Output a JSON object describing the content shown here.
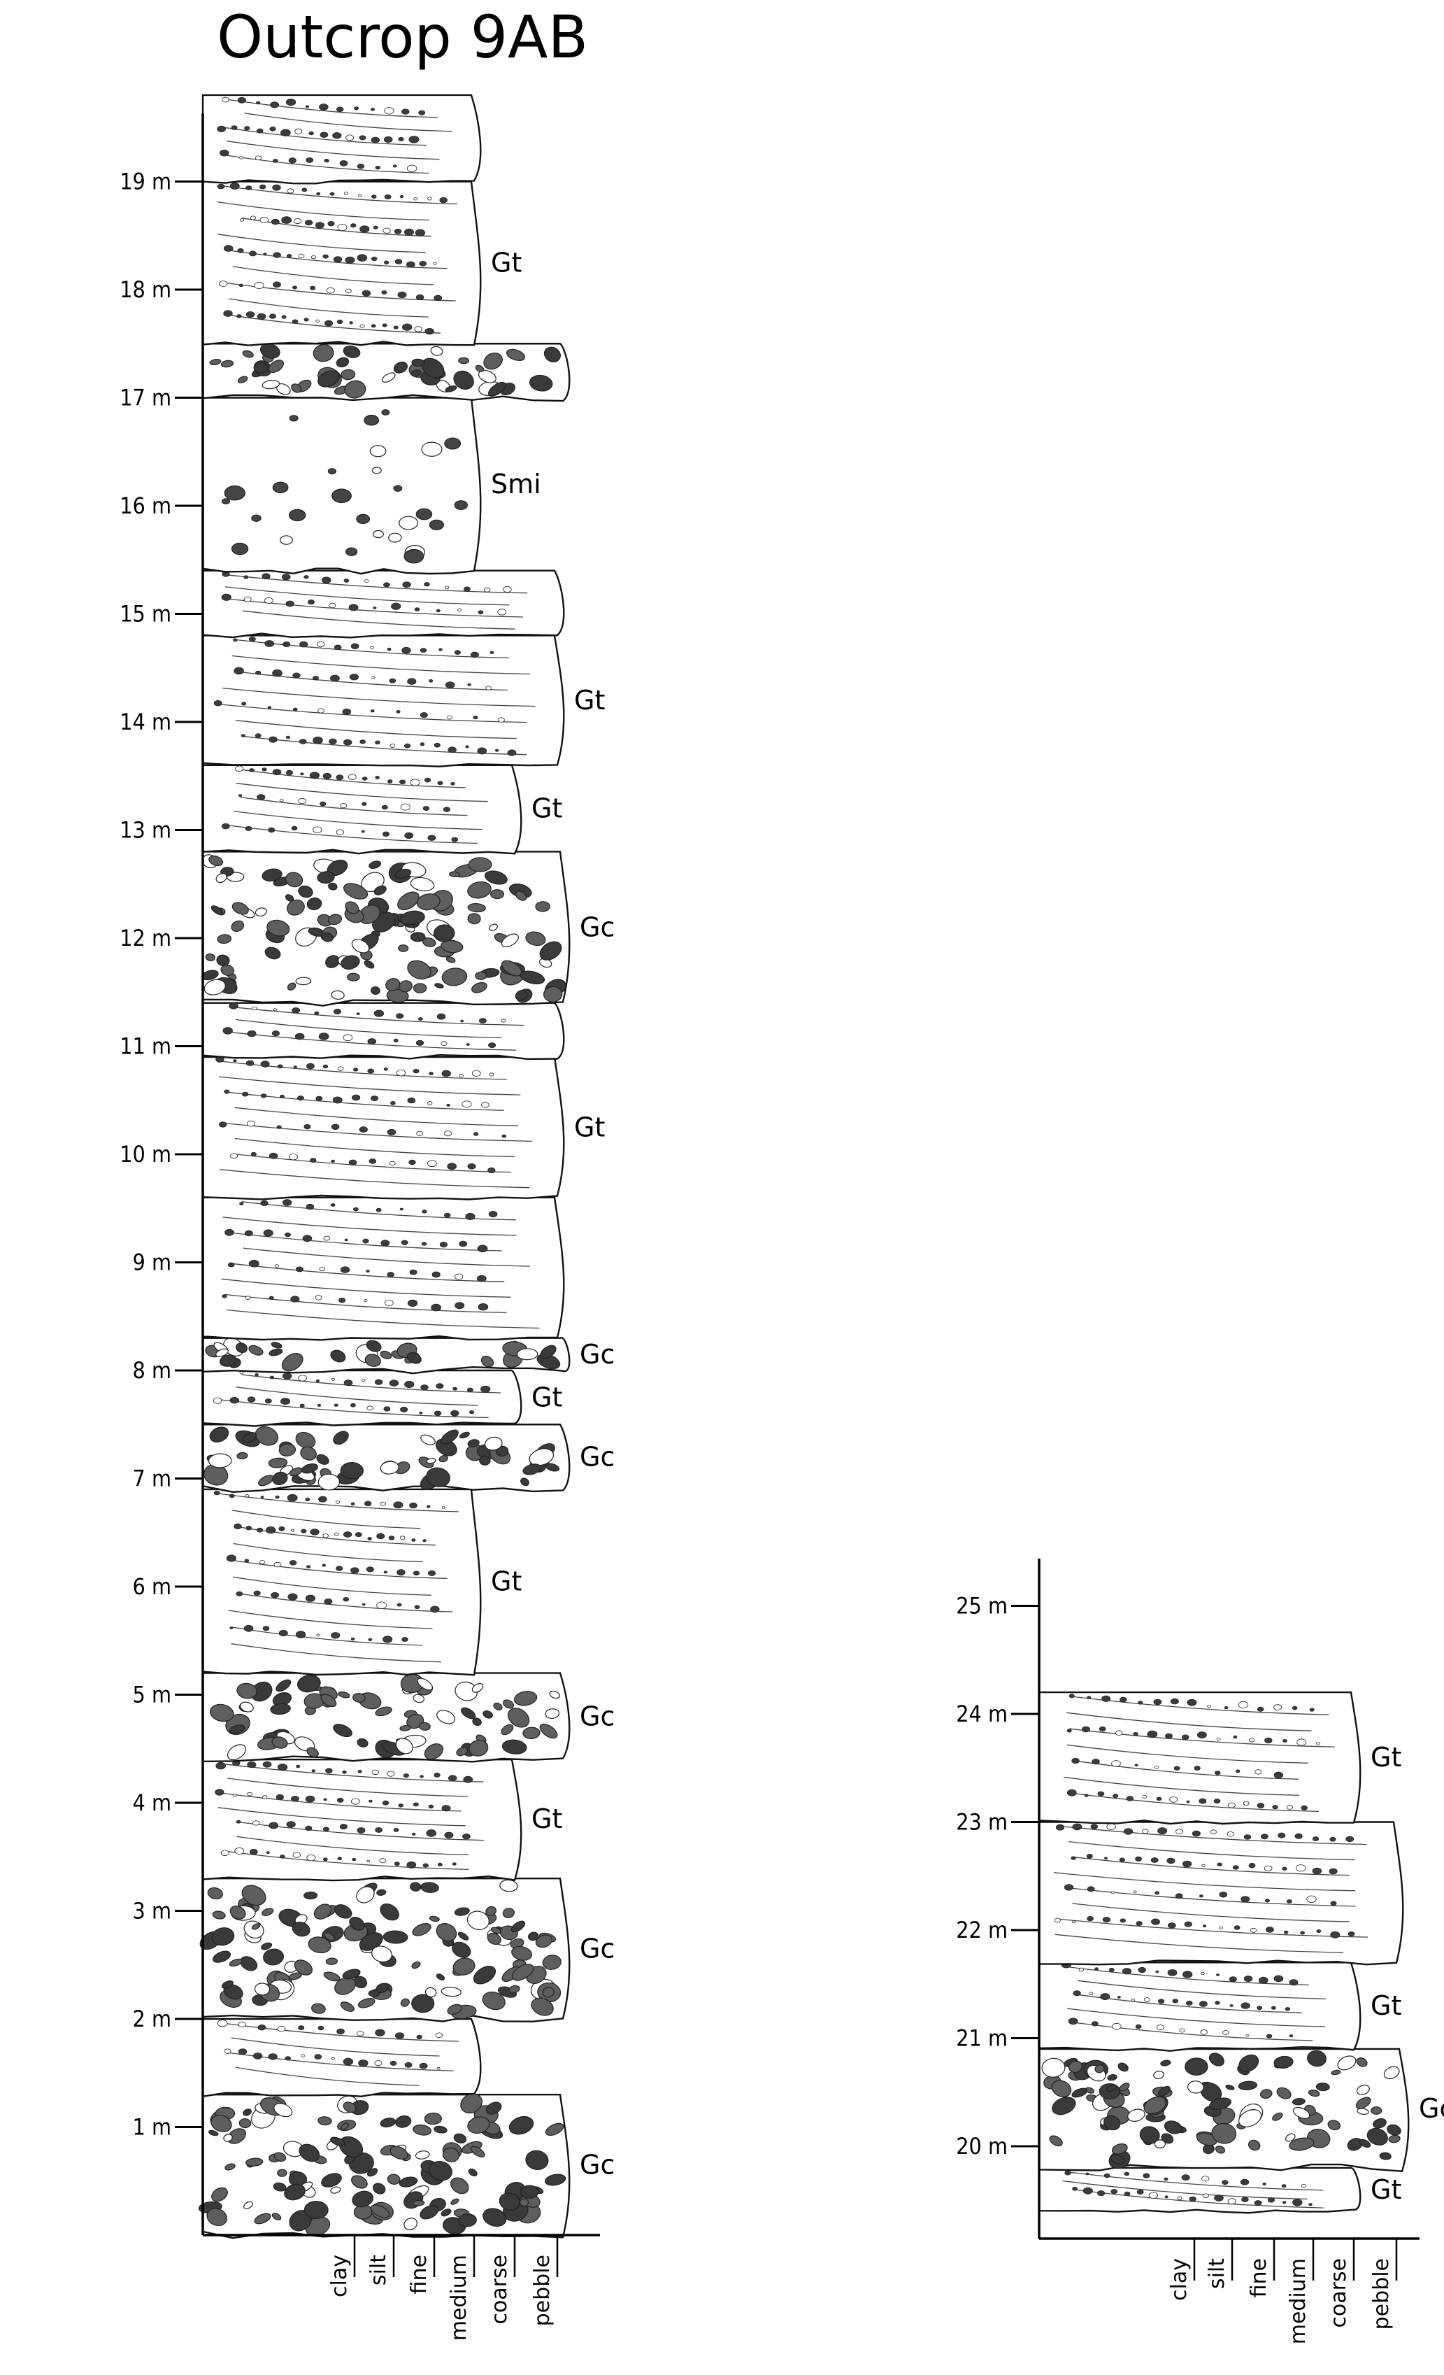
{
  "title": "Outcrop 9AB",
  "columns": [
    {
      "ticks": [
        "1 m",
        "2 m",
        "3 m",
        "4 m",
        "5 m",
        "6 m",
        "7 m",
        "8 m",
        "9 m",
        "10 m",
        "11 m",
        "12 m",
        "13 m",
        "14 m",
        "15 m",
        "16 m",
        "17 m",
        "18 m",
        "19 m"
      ],
      "grain_sizes": [
        "clay",
        "silt",
        "fine",
        "medium",
        "coarse",
        "pebble"
      ],
      "beds": [
        {
          "facies": "Gc",
          "bottom": 0,
          "top": 1.3,
          "grain": "pebble",
          "label": "Gc"
        },
        {
          "facies": "Gt",
          "bottom": 1.3,
          "top": 2.0,
          "grain": "medium",
          "label": ""
        },
        {
          "facies": "Gc",
          "bottom": 2.0,
          "top": 3.3,
          "grain": "pebble",
          "label": "Gc"
        },
        {
          "facies": "Gt",
          "bottom": 3.3,
          "top": 4.4,
          "grain": "coarse",
          "label": "Gt"
        },
        {
          "facies": "Gc",
          "bottom": 4.4,
          "top": 5.2,
          "grain": "pebble",
          "label": "Gc"
        },
        {
          "facies": "Gt",
          "bottom": 5.2,
          "top": 6.9,
          "grain": "medium",
          "label": "Gt"
        },
        {
          "facies": "Gc",
          "bottom": 6.9,
          "top": 7.5,
          "grain": "pebble",
          "label": "Gc"
        },
        {
          "facies": "Gt",
          "bottom": 7.5,
          "top": 8.0,
          "grain": "coarse",
          "label": "Gt"
        },
        {
          "facies": "Gc",
          "bottom": 8.0,
          "top": 8.3,
          "grain": "pebble",
          "label": "Gc"
        },
        {
          "facies": "Gt",
          "bottom": 8.3,
          "top": 9.6,
          "grain": "pebble",
          "label": ""
        },
        {
          "facies": "Gt",
          "bottom": 9.6,
          "top": 10.9,
          "grain": "pebble",
          "label": "Gt"
        },
        {
          "facies": "Gt",
          "bottom": 10.9,
          "top": 11.4,
          "grain": "pebble",
          "label": ""
        },
        {
          "facies": "Gc",
          "bottom": 11.4,
          "top": 12.8,
          "grain": "pebble",
          "label": "Gc"
        },
        {
          "facies": "Gt",
          "bottom": 12.8,
          "top": 13.6,
          "grain": "coarse",
          "label": "Gt"
        },
        {
          "facies": "Gt",
          "bottom": 13.6,
          "top": 14.8,
          "grain": "pebble",
          "label": "Gt"
        },
        {
          "facies": "Gt",
          "bottom": 14.8,
          "top": 15.4,
          "grain": "pebble",
          "label": ""
        },
        {
          "facies": "Smi",
          "bottom": 15.4,
          "top": 17.0,
          "grain": "medium",
          "label": "Smi"
        },
        {
          "facies": "Gc",
          "bottom": 17.0,
          "top": 17.5,
          "grain": "pebble",
          "label": ""
        },
        {
          "facies": "Gt",
          "bottom": 17.5,
          "top": 19.0,
          "grain": "medium",
          "label": "Gt"
        },
        {
          "facies": "Gt",
          "bottom": 19.0,
          "top": 19.8,
          "grain": "medium",
          "label": ""
        }
      ]
    },
    {
      "ticks": [
        "20 m",
        "21 m",
        "22 m",
        "23 m",
        "24 m",
        "25 m"
      ],
      "grain_sizes": [
        "clay",
        "silt",
        "fine",
        "medium",
        "coarse",
        "pebble"
      ],
      "beds": [
        {
          "facies": "Gt",
          "bottom": 19.4,
          "top": 19.8,
          "grain": "coarse",
          "label": "Gt"
        },
        {
          "facies": "Gc",
          "bottom": 19.8,
          "top": 20.9,
          "grain": "pebble",
          "label": "Gc"
        },
        {
          "facies": "Gt",
          "bottom": 20.9,
          "top": 21.7,
          "grain": "coarse",
          "label": "Gt"
        },
        {
          "facies": "Gt",
          "bottom": 21.7,
          "top": 23.0,
          "grain": "pebble",
          "label": ""
        },
        {
          "facies": "Gt",
          "bottom": 23.0,
          "top": 24.2,
          "grain": "coarse",
          "label": "Gt"
        }
      ]
    }
  ]
}
